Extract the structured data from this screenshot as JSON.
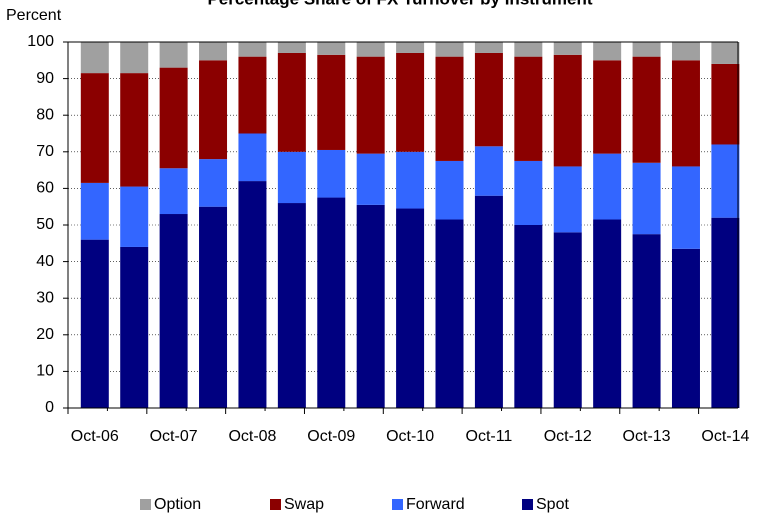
{
  "chart_data": {
    "type": "stacked_bar",
    "title": "Percentage Share of FX Turnover by Instrument",
    "y_label": "Percent",
    "categories": [
      "Oct-06",
      null,
      "Oct-07",
      null,
      "Oct-08",
      null,
      "Oct-09",
      null,
      "Oct-10",
      null,
      "Oct-11",
      null,
      "Oct-12",
      null,
      "Oct-13",
      null,
      "Oct-14"
    ],
    "series": [
      {
        "name": "Spot",
        "color": "#000080",
        "values": [
          46,
          44,
          53,
          55,
          62,
          56,
          57.5,
          55.5,
          54.5,
          51.5,
          58,
          50,
          48,
          51.5,
          47.5,
          43.5,
          52
        ]
      },
      {
        "name": "Forward",
        "color": "#3366ff",
        "values": [
          15.5,
          16.5,
          12.5,
          13,
          13,
          14,
          13,
          14,
          15.5,
          16,
          13.5,
          17.5,
          18,
          18,
          19.5,
          22.5,
          20
        ]
      },
      {
        "name": "Swap",
        "color": "#8b0000",
        "values": [
          30,
          31,
          27.5,
          27,
          21,
          27,
          26,
          26.5,
          27,
          28.5,
          25.5,
          28.5,
          30.5,
          25.5,
          29,
          29,
          22
        ]
      },
      {
        "name": "Option",
        "color": "#a0a0a0",
        "values": [
          8.5,
          8.5,
          7,
          5,
          4,
          3,
          3.5,
          4,
          3,
          4,
          3,
          4,
          3.5,
          5,
          4,
          5,
          6
        ]
      }
    ],
    "legend_order": [
      "Option",
      "Swap",
      "Forward",
      "Spot"
    ],
    "ylim": [
      0,
      100
    ],
    "yticks": [
      0,
      10,
      20,
      30,
      40,
      50,
      60,
      70,
      80,
      90,
      100
    ],
    "grid": true
  }
}
